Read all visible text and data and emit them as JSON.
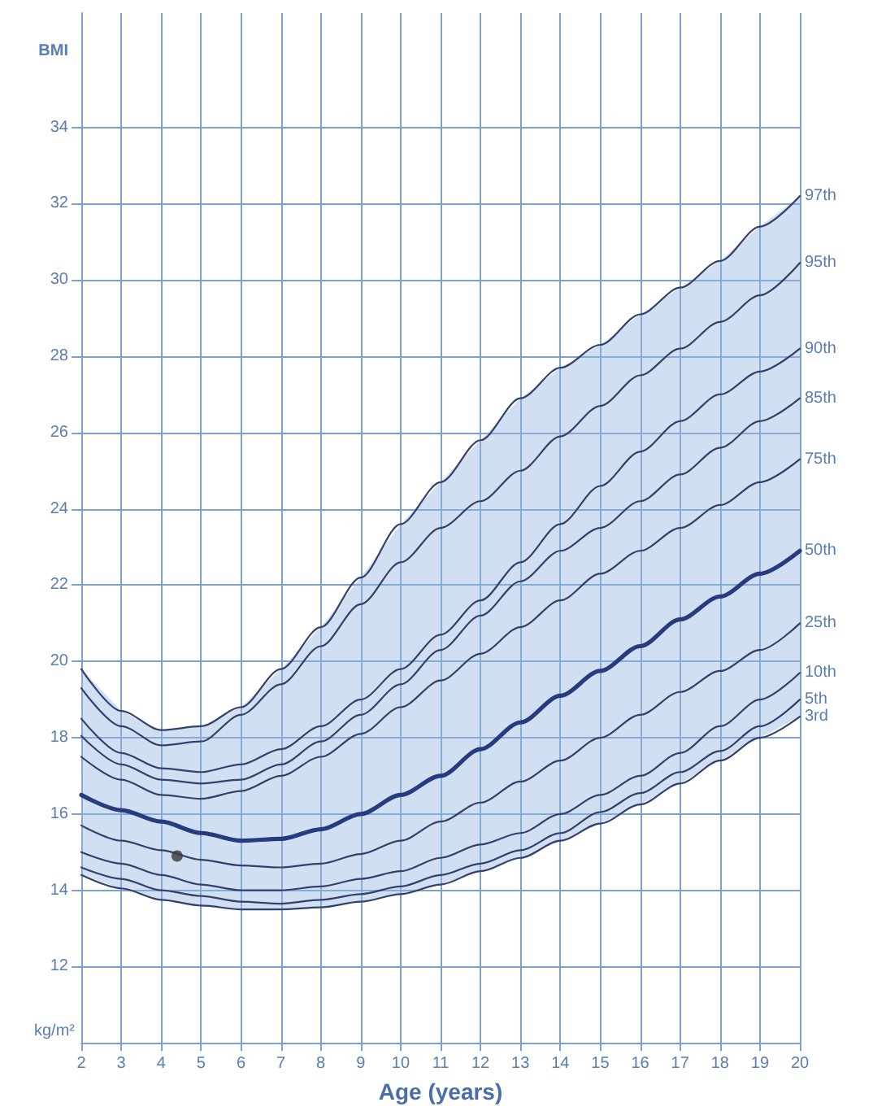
{
  "chart_data": {
    "type": "line",
    "xlabel": "Age (years)",
    "ylabel": "BMI",
    "annotations": [
      "kg/m²"
    ],
    "x": [
      2,
      3,
      4,
      5,
      6,
      7,
      8,
      9,
      10,
      11,
      12,
      13,
      14,
      15,
      16,
      17,
      18,
      19,
      20
    ],
    "xlim": [
      2,
      20
    ],
    "xticks": [
      2,
      3,
      4,
      5,
      6,
      7,
      8,
      9,
      10,
      11,
      12,
      13,
      14,
      15,
      16,
      17,
      18,
      19,
      20
    ],
    "ylim": [
      10,
      37
    ],
    "yticks": [
      12,
      14,
      16,
      18,
      20,
      22,
      24,
      26,
      28,
      30,
      32,
      34
    ],
    "grid": true,
    "marker": "none",
    "line_style": "solid",
    "series": [
      {
        "name": "97th",
        "color": "#34406a",
        "values": [
          19.8,
          18.7,
          18.2,
          18.3,
          18.8,
          19.8,
          20.9,
          22.2,
          23.6,
          24.7,
          25.8,
          26.9,
          27.7,
          28.3,
          29.1,
          29.8,
          30.5,
          31.4,
          32.2
        ]
      },
      {
        "name": "95th",
        "color": "#34406a",
        "values": [
          19.3,
          18.3,
          17.8,
          17.9,
          18.6,
          19.4,
          20.4,
          21.5,
          22.6,
          23.5,
          24.2,
          25.0,
          25.9,
          26.7,
          27.5,
          28.2,
          28.9,
          29.6,
          30.45
        ]
      },
      {
        "name": "90th",
        "color": "#34406a",
        "values": [
          18.5,
          17.6,
          17.2,
          17.1,
          17.3,
          17.7,
          18.3,
          19.0,
          19.8,
          20.7,
          21.6,
          22.6,
          23.6,
          24.6,
          25.5,
          26.3,
          27.0,
          27.6,
          28.2
        ]
      },
      {
        "name": "85th",
        "color": "#34406a",
        "values": [
          18.05,
          17.3,
          16.9,
          16.8,
          16.9,
          17.3,
          17.9,
          18.6,
          19.4,
          20.3,
          21.2,
          22.1,
          22.9,
          23.5,
          24.2,
          24.9,
          25.6,
          26.3,
          26.9
        ]
      },
      {
        "name": "75th",
        "color": "#34406a",
        "values": [
          17.5,
          16.9,
          16.5,
          16.4,
          16.6,
          17.0,
          17.5,
          18.1,
          18.8,
          19.5,
          20.2,
          20.9,
          21.6,
          22.3,
          22.9,
          23.5,
          24.1,
          24.7,
          25.3
        ]
      },
      {
        "name": "50th",
        "color": "#283a80",
        "values": [
          16.5,
          16.1,
          15.8,
          15.5,
          15.3,
          15.35,
          15.6,
          16.0,
          16.5,
          17.0,
          17.7,
          18.4,
          19.1,
          19.75,
          20.4,
          21.1,
          21.7,
          22.3,
          22.9
        ],
        "lower": [
          14.4,
          14.05,
          13.75,
          13.6,
          13.5,
          13.5,
          13.55,
          13.7,
          13.9,
          14.15,
          14.5,
          14.85,
          15.3,
          15.75,
          16.25,
          16.8,
          17.4,
          18.0,
          18.55
        ],
        "upper": [
          19.8,
          18.7,
          18.2,
          18.3,
          18.8,
          19.8,
          20.9,
          22.2,
          23.6,
          24.7,
          25.8,
          26.9,
          27.7,
          28.3,
          29.1,
          29.8,
          30.5,
          31.4,
          32.2
        ]
      },
      {
        "name": "25th",
        "color": "#34406a",
        "values": [
          15.7,
          15.3,
          15.05,
          14.8,
          14.65,
          14.6,
          14.7,
          14.95,
          15.3,
          15.8,
          16.3,
          16.85,
          17.4,
          18.0,
          18.6,
          19.2,
          19.75,
          20.3,
          21.0
        ]
      },
      {
        "name": "10th",
        "color": "#34406a",
        "values": [
          15.0,
          14.7,
          14.4,
          14.15,
          14.0,
          14.0,
          14.1,
          14.3,
          14.5,
          14.85,
          15.2,
          15.5,
          16.0,
          16.5,
          17.0,
          17.6,
          18.3,
          19.0,
          19.7
        ]
      },
      {
        "name": "5th",
        "color": "#34406a",
        "values": [
          14.6,
          14.3,
          14.0,
          13.85,
          13.7,
          13.65,
          13.75,
          13.9,
          14.1,
          14.4,
          14.7,
          15.05,
          15.5,
          16.05,
          16.55,
          17.1,
          17.65,
          18.3,
          19.0
        ]
      },
      {
        "name": "3rd",
        "color": "#34406a",
        "values": [
          14.4,
          14.05,
          13.75,
          13.6,
          13.5,
          13.5,
          13.55,
          13.7,
          13.9,
          14.15,
          14.5,
          14.85,
          15.3,
          15.75,
          16.25,
          16.8,
          17.4,
          18.0,
          18.55
        ]
      },
      {
        "type": "scatter",
        "color": "#3a3a3a",
        "x": [
          4.4
        ],
        "values": [
          14.9
        ],
        "marker": "circle"
      }
    ]
  }
}
